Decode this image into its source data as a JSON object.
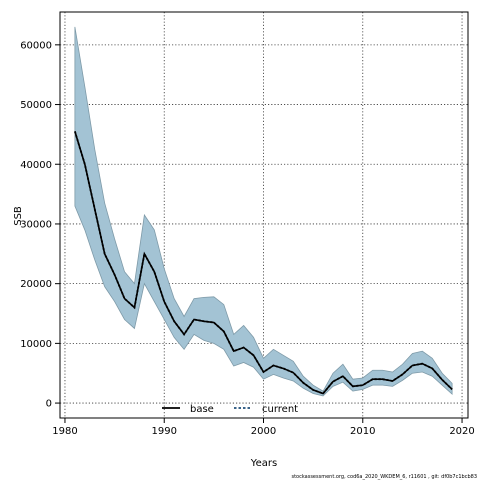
{
  "chart_data": {
    "type": "area",
    "xlabel": "Years",
    "ylabel": "SSB",
    "xlim": [
      1979.5,
      2020.6
    ],
    "ylim": [
      -2500,
      65500
    ],
    "xticks": [
      1980,
      1990,
      2000,
      2010,
      2020
    ],
    "yticks": [
      0,
      10000,
      20000,
      30000,
      40000,
      50000,
      60000
    ],
    "grid": true,
    "legend_placement": "bottom-center",
    "footer": "stockassessment.org, cod6a_2020_WKDEM_6, r11601 , git: df0b7c1bcb83",
    "colors": {
      "band": "#a3c3d4",
      "band_edge": "#7e9aa8",
      "base": "#000000",
      "current": "#1f4e79"
    },
    "years": [
      1981,
      1982,
      1983,
      1984,
      1985,
      1986,
      1987,
      1988,
      1989,
      1990,
      1991,
      1992,
      1993,
      1994,
      1995,
      1996,
      1997,
      1998,
      1999,
      2000,
      2001,
      2002,
      2003,
      2004,
      2005,
      2006,
      2007,
      2008,
      2009,
      2010,
      2011,
      2012,
      2013,
      2014,
      2015,
      2016,
      2017,
      2018,
      2019
    ],
    "band_upper": [
      63000,
      53000,
      42500,
      33500,
      27500,
      22000,
      20000,
      31500,
      29000,
      22500,
      17500,
      14500,
      17500,
      17700,
      17800,
      16500,
      11500,
      13000,
      11000,
      7500,
      9000,
      8000,
      7000,
      4500,
      3000,
      2000,
      5000,
      6500,
      4000,
      4200,
      5500,
      5500,
      5200,
      6500,
      8300,
      8700,
      7500,
      5000,
      3300
    ],
    "band_lower": [
      33000,
      29000,
      24000,
      19500,
      17000,
      14000,
      12500,
      20000,
      17000,
      14000,
      11000,
      9000,
      11500,
      10500,
      10000,
      9000,
      6200,
      6800,
      6000,
      4000,
      4800,
      4200,
      3700,
      2500,
      1600,
      1200,
      2800,
      3500,
      2000,
      2300,
      3000,
      3000,
      2800,
      3800,
      5000,
      5200,
      4500,
      3000,
      1500
    ],
    "series": [
      {
        "name": "base",
        "style": "solid",
        "values": [
          45500,
          40000,
          32500,
          25000,
          21500,
          17500,
          16000,
          25000,
          22000,
          17000,
          13700,
          11500,
          14000,
          13700,
          13500,
          12000,
          8700,
          9300,
          8000,
          5200,
          6300,
          5800,
          5100,
          3400,
          2200,
          1600,
          3600,
          4500,
          2800,
          3000,
          4000,
          4000,
          3700,
          4800,
          6300,
          6600,
          5800,
          3900,
          2300
        ]
      },
      {
        "name": "current",
        "style": "dashed",
        "values": [
          45500,
          40000,
          32500,
          25000,
          21500,
          17500,
          16000,
          25000,
          22000,
          17000,
          13700,
          11500,
          14000,
          13700,
          13500,
          12000,
          8700,
          9300,
          8000,
          5200,
          6300,
          5800,
          5100,
          3400,
          2200,
          1600,
          3600,
          4500,
          2800,
          3000,
          4000,
          4000,
          3700,
          4800,
          6300,
          6600,
          5800,
          3900,
          2300
        ]
      }
    ]
  }
}
